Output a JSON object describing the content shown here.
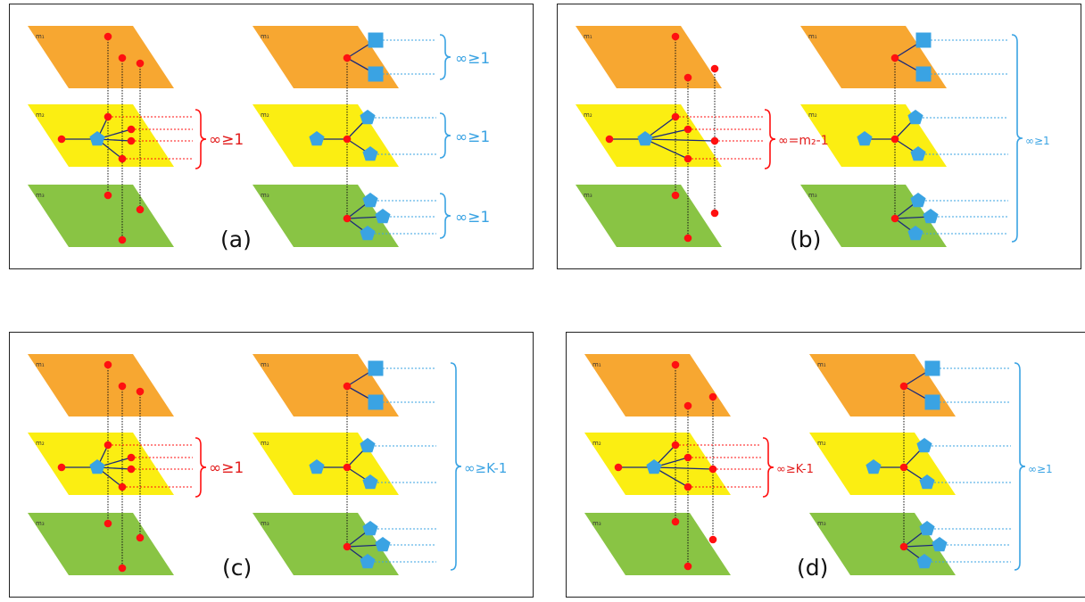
{
  "colors": {
    "orange": "#f7a731",
    "yellow": "#fbee12",
    "green": "#89c444",
    "red": "#ff1010",
    "blue": "#3aa3e3",
    "navy": "#1b2a7a"
  },
  "layer_labels": [
    "m₁",
    "m₂",
    "m₃"
  ],
  "panels": [
    {
      "id": "a",
      "caption": "(a)",
      "red_label": "∞≥1",
      "blue_labels": [
        "∞≥1",
        "∞≥1",
        "∞≥1"
      ]
    },
    {
      "id": "b",
      "caption": "(b)",
      "red_label": "∞=m₂-1",
      "blue_labels": [
        "∞≥1"
      ]
    },
    {
      "id": "c",
      "caption": "(c)",
      "red_label": "∞≥1",
      "blue_labels": [
        "∞≥K-1"
      ]
    },
    {
      "id": "d",
      "caption": "(d)",
      "red_label": "∞≥K-1",
      "blue_labels": [
        "∞≥1"
      ]
    }
  ]
}
